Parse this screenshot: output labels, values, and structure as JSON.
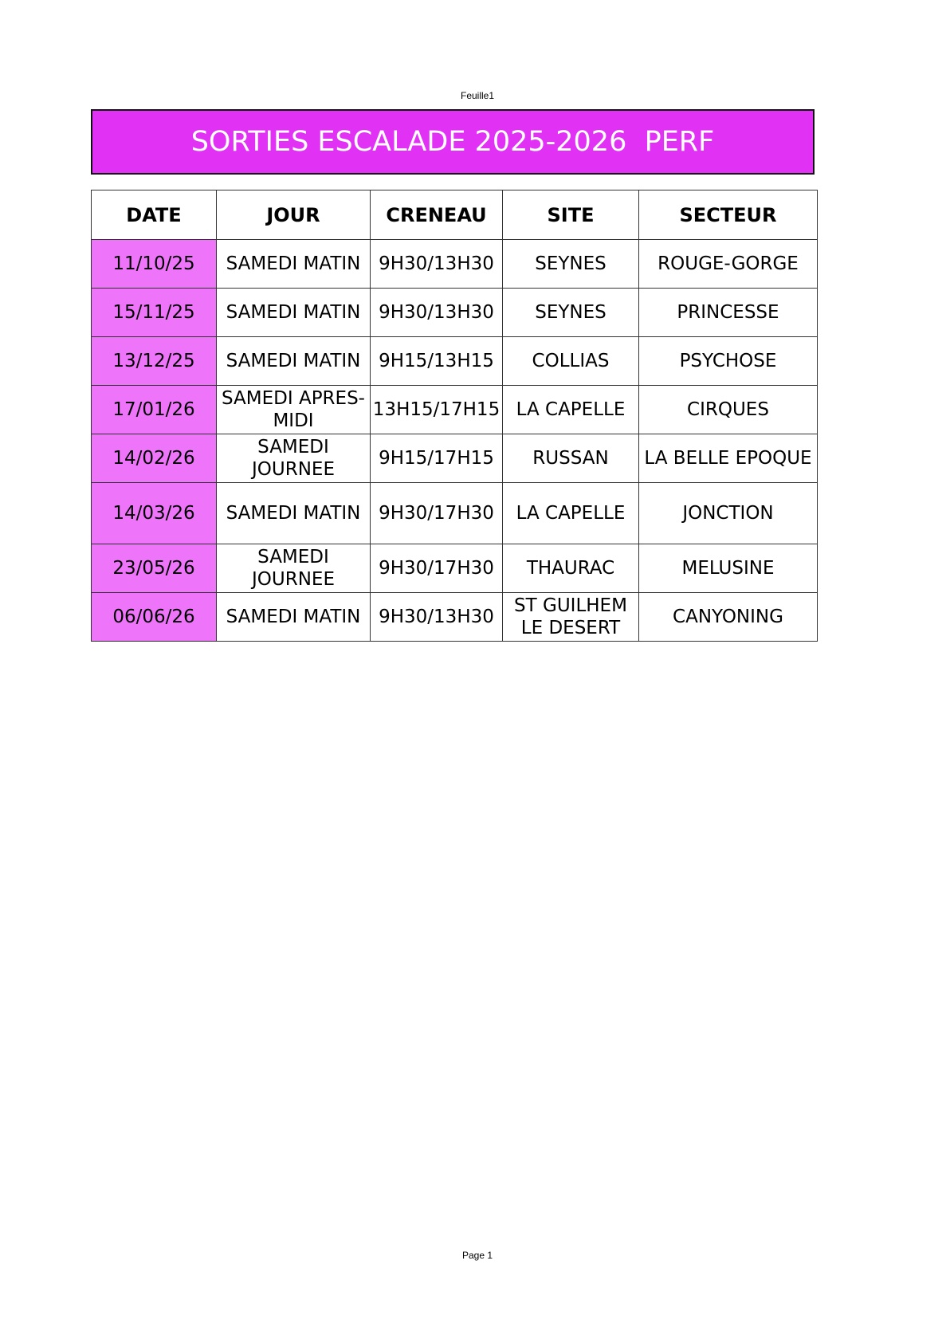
{
  "sheet_name": "Feuille1",
  "title": "SORTIES ESCALADE 2025-2026  PERF",
  "colors": {
    "title_bg": "#e131f5",
    "date_bg": "#ee74fa"
  },
  "columns": [
    "DATE",
    "JOUR",
    "CRENEAU",
    "SITE",
    "SECTEUR"
  ],
  "rows": [
    [
      "11/10/25",
      "SAMEDI MATIN",
      "9H30/13H30",
      "SEYNES",
      "ROUGE-GORGE"
    ],
    [
      "15/11/25",
      "SAMEDI MATIN",
      "9H30/13H30",
      "SEYNES",
      "PRINCESSE"
    ],
    [
      "13/12/25",
      "SAMEDI MATIN",
      "9H15/13H15",
      "COLLIAS",
      "PSYCHOSE"
    ],
    [
      "17/01/26",
      "SAMEDI APRES-MIDI",
      "13H15/17H15",
      "LA CAPELLE",
      "CIRQUES"
    ],
    [
      "14/02/26",
      "SAMEDI JOURNEE",
      "9H15/17H15",
      "RUSSAN",
      "LA BELLE EPOQUE"
    ],
    [
      "14/03/26",
      "SAMEDI MATIN",
      "9H30/17H30",
      "LA CAPELLE",
      "JONCTION"
    ],
    [
      "23/05/26",
      "SAMEDI JOURNEE",
      "9H30/17H30",
      "THAURAC",
      "MELUSINE"
    ],
    [
      "06/06/26",
      "SAMEDI MATIN",
      "9H30/13H30",
      "ST GUILHEM LE DESERT",
      "CANYONING"
    ]
  ],
  "footer": "Page 1"
}
